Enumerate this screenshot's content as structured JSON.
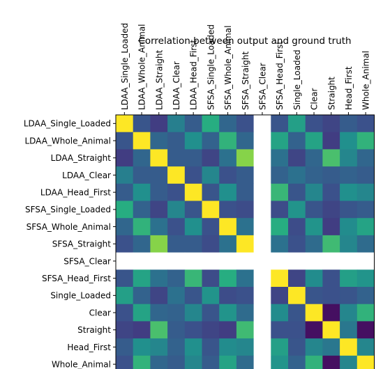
{
  "chart_data": {
    "type": "heatmap",
    "title": "Correlation between output and ground truth",
    "xlabel": "",
    "ylabel": "",
    "grid": false,
    "colormap": "viridis",
    "x_tick_position": "top",
    "categories": [
      "LDAA_Single_Loaded",
      "LDAA_Whole_Animal",
      "LDAA_Straight",
      "LDAA_Clear",
      "LDAA_Head_First",
      "SFSA_Single_Loaded",
      "SFSA_Whole_Animal",
      "SFSA_Straight",
      "SFSA_Clear",
      "SFSA_Head_First",
      "Single_Loaded",
      "Clear",
      "Straight",
      "Head_First",
      "Whole_Animal"
    ],
    "value_range": [
      -0.2,
      1.0
    ],
    "values": [
      [
        1.0,
        0.12,
        0.02,
        0.32,
        0.15,
        0.55,
        0.2,
        0.1,
        null,
        0.12,
        0.48,
        0.1,
        0.05,
        0.15,
        0.1
      ],
      [
        0.12,
        1.0,
        0.2,
        0.15,
        0.4,
        0.18,
        0.58,
        0.2,
        null,
        0.5,
        0.18,
        0.5,
        0.02,
        0.4,
        0.58
      ],
      [
        0.02,
        0.2,
        1.0,
        0.15,
        0.15,
        0.05,
        0.25,
        0.78,
        null,
        0.25,
        0.05,
        0.2,
        0.65,
        0.35,
        0.2
      ],
      [
        0.32,
        0.15,
        0.15,
        1.0,
        0.1,
        0.35,
        0.1,
        0.15,
        null,
        0.18,
        0.25,
        0.18,
        0.15,
        0.18,
        0.15
      ],
      [
        0.15,
        0.4,
        0.15,
        0.1,
        1.0,
        0.12,
        0.4,
        0.15,
        null,
        0.6,
        0.12,
        0.35,
        0.1,
        0.4,
        0.35
      ],
      [
        0.55,
        0.18,
        0.05,
        0.35,
        0.12,
        1.0,
        0.1,
        0.08,
        null,
        0.08,
        0.42,
        0.12,
        0.05,
        0.12,
        0.15
      ],
      [
        0.2,
        0.58,
        0.25,
        0.1,
        0.4,
        0.1,
        1.0,
        0.25,
        null,
        0.55,
        0.08,
        0.42,
        0.02,
        0.38,
        0.5
      ],
      [
        0.1,
        0.2,
        0.78,
        0.15,
        0.15,
        0.08,
        0.25,
        1.0,
        null,
        0.25,
        0.1,
        0.22,
        0.62,
        0.35,
        0.22
      ],
      [
        null,
        null,
        null,
        null,
        null,
        null,
        null,
        null,
        null,
        null,
        null,
        null,
        null,
        null,
        null
      ],
      [
        0.12,
        0.5,
        0.25,
        0.18,
        0.6,
        0.08,
        0.55,
        0.25,
        null,
        1.0,
        0.05,
        0.38,
        0.1,
        0.48,
        0.42
      ],
      [
        0.48,
        0.18,
        0.05,
        0.25,
        0.12,
        0.42,
        0.08,
        0.1,
        null,
        0.05,
        1.0,
        0.12,
        0.1,
        0.12,
        0.18
      ],
      [
        0.1,
        0.5,
        0.2,
        0.18,
        0.35,
        0.12,
        0.42,
        0.22,
        null,
        0.38,
        0.12,
        1.0,
        -0.15,
        0.35,
        0.58
      ],
      [
        0.05,
        0.02,
        0.65,
        0.15,
        0.1,
        0.05,
        0.02,
        0.62,
        null,
        0.1,
        0.1,
        -0.15,
        1.0,
        0.28,
        -0.15
      ],
      [
        0.15,
        0.4,
        0.35,
        0.18,
        0.4,
        0.12,
        0.38,
        0.35,
        null,
        0.48,
        0.12,
        0.35,
        0.28,
        1.0,
        0.35
      ],
      [
        0.1,
        0.58,
        0.2,
        0.15,
        0.35,
        0.15,
        0.5,
        0.22,
        null,
        0.42,
        0.18,
        0.58,
        -0.15,
        0.35,
        1.0
      ]
    ]
  }
}
